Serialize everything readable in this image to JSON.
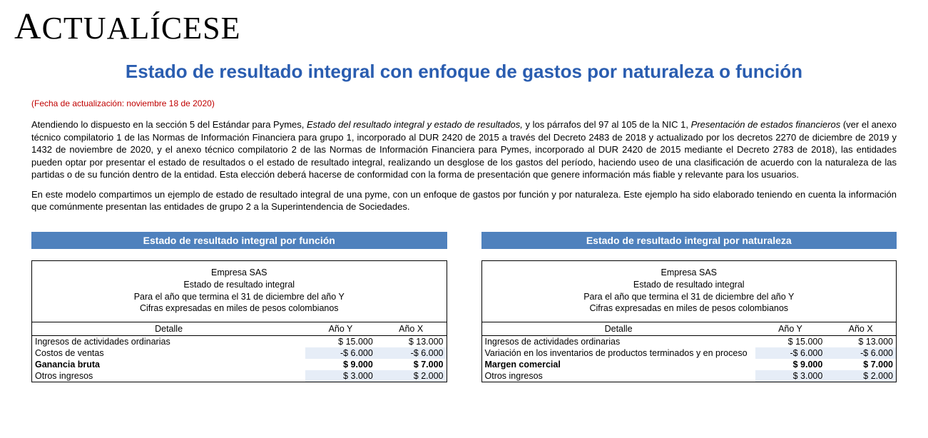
{
  "brand": "ACTUALÍCESE",
  "title": "Estado de resultado integral con enfoque de gastos por naturaleza o función",
  "update_date": "(Fecha de actualización: noviembre 18 de 2020)",
  "para1_a": "Atendiendo lo dispuesto en la sección 5 del Estándar para Pymes, ",
  "para1_em1": "Estado del resultado integral y estado de resultados,",
  "para1_b": " y los párrafos del 97 al 105 de la NIC 1, ",
  "para1_em2": "Presentación de estados financieros",
  "para1_c": " (ver el anexo técnico compilatorio 1 de las Normas de Información Financiera para grupo 1, incorporado al DUR 2420 de 2015 a través del Decreto 2483 de 2018 y actualizado por los decretos 2270 de diciembre de 2019 y 1432 de noviembre de 2020, y el anexo técnico compilatorio 2 de las Normas de Información Financiera para Pymes, incorporado al DUR 2420 de 2015 mediante el Decreto 2783 de 2018), las entidades pueden optar por presentar el estado de resultados o el estado de resultado integral, realizando un desglose de los gastos del período, haciendo useo de una clasificación de acuerdo con la naturaleza de las partidas o de su función dentro de la entidad. Esta elección deberá hacerse de conformidad con la forma de presentación que genere información más fiable y relevante para los usuarios.",
  "para2": "En este modelo compartimos un ejemplo de estado de resultado integral de una pyme, con un enfoque de gastos por función y por naturaleza. Este ejemplo ha sido elaborado teniendo en cuenta la información que comúnmente presentan las entidades de grupo 2 a la Superintendencia de Sociedades.",
  "colors": {
    "header_bg": "#4f81bd",
    "header_fg": "#ffffff",
    "alt_val_bg": "#e6edf7",
    "title_fg": "#2a5db0",
    "date_fg": "#c00000"
  },
  "left": {
    "header": "Estado de resultado integral por función",
    "company": "Empresa SAS",
    "statement": "Estado de resultado integral",
    "period": "Para el año que termina el 31 de diciembre del año Y",
    "currency": "Cifras expresadas en miles de pesos colombianos",
    "col_detail": "Detalle",
    "col_y": "Año Y",
    "col_x": "Año X",
    "rows": [
      {
        "label": "Ingresos de actividades ordinarias",
        "y": "$ 15.000",
        "x": "$ 13.000",
        "bold": false,
        "alt": false
      },
      {
        "label": "Costos de ventas",
        "y": "-$  6.000",
        "x": "-$  6.000",
        "bold": false,
        "alt": true
      },
      {
        "label": "Ganancia bruta",
        "y": "$  9.000",
        "x": "$  7.000",
        "bold": true,
        "alt": false
      },
      {
        "label": "Otros ingresos",
        "y": "$  3.000",
        "x": "$  2.000",
        "bold": false,
        "alt": true
      }
    ]
  },
  "right": {
    "header": "Estado de resultado integral por naturaleza",
    "company": "Empresa SAS",
    "statement": "Estado de resultado integral",
    "period": "Para el año que termina el 31 de diciembre del año Y",
    "currency": "Cifras expresadas en miles de pesos colombianos",
    "col_detail": "Detalle",
    "col_y": "Año Y",
    "col_x": "Año X",
    "rows": [
      {
        "label": "Ingresos de actividades ordinarias",
        "y": "$ 15.000",
        "x": "$ 13.000",
        "bold": false,
        "alt": false
      },
      {
        "label": "Variación en los inventarios de productos terminados y en proceso",
        "y": "-$  6.000",
        "x": "-$  6.000",
        "bold": false,
        "alt": true
      },
      {
        "label": "Margen comercial",
        "y": "$  9.000",
        "x": "$  7.000",
        "bold": true,
        "alt": false
      },
      {
        "label": "Otros ingresos",
        "y": "$  3.000",
        "x": "$  2.000",
        "bold": false,
        "alt": true
      }
    ]
  }
}
